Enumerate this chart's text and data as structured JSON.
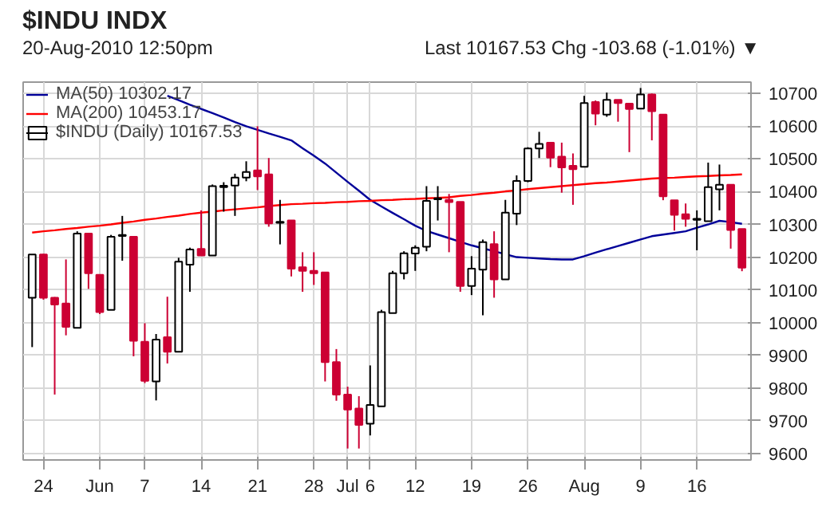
{
  "chart_data": {
    "type": "candlestick",
    "title": "$INDU INDX",
    "subtitle": "20-Aug-2010 12:50pm",
    "annotations": [
      "Last 10167.53 Chg -103.68 (-1.01%) ▼"
    ],
    "categories": [
      null,
      "24",
      null,
      null,
      null,
      null,
      "Jun",
      null,
      null,
      null,
      "7",
      null,
      null,
      null,
      null,
      "14",
      null,
      null,
      null,
      null,
      "21",
      null,
      null,
      null,
      null,
      "28",
      null,
      null,
      "Jul",
      null,
      "6",
      null,
      null,
      null,
      "12",
      null,
      null,
      null,
      null,
      "19",
      null,
      null,
      null,
      null,
      "26",
      null,
      null,
      null,
      null,
      "Aug",
      null,
      null,
      null,
      null,
      "9",
      null,
      null,
      null,
      null,
      "16",
      null,
      null,
      null,
      null
    ],
    "series": [
      {
        "name": "$INDU (Daily) 10167.53",
        "colors": [
          "#ffffff",
          "#cc0033",
          "#cc0033",
          "#cc0033",
          "#ffffff",
          "#cc0033",
          "#cc0033",
          "#ffffff",
          "#ffffff",
          "#cc0033",
          "#cc0033",
          "#ffffff",
          "#cc0033",
          "#ffffff",
          "#ffffff",
          "#cc0033",
          "#ffffff",
          "#ffffff",
          "#ffffff",
          "#ffffff",
          "#cc0033",
          "#cc0033",
          "#ffffff",
          "#cc0033",
          "#cc0033",
          "#cc0033",
          "#cc0033",
          "#cc0033",
          "#cc0033",
          "#cc0033",
          "#ffffff",
          "#ffffff",
          "#ffffff",
          "#ffffff",
          "#ffffff",
          "#ffffff",
          "#ffffff",
          "#cc0033",
          "#cc0033",
          "#ffffff",
          "#ffffff",
          "#cc0033",
          "#ffffff",
          "#ffffff",
          "#ffffff",
          "#ffffff",
          "#cc0033",
          "#cc0033",
          "#cc0033",
          "#ffffff",
          "#cc0033",
          "#ffffff",
          "#cc0033",
          "#cc0033",
          "#ffffff",
          "#cc0033",
          "#cc0033",
          "#cc0033",
          "#cc0033",
          "#ffffff",
          "#ffffff",
          "#ffffff",
          "#cc0033",
          "#cc0033"
        ],
        "ohlc": [
          [
            10076,
            10208,
            9925,
            10208
          ],
          [
            10208,
            10210,
            10070,
            10076
          ],
          [
            10076,
            10078,
            9780,
            10055
          ],
          [
            10058,
            10193,
            9961,
            9987
          ],
          [
            9984,
            10279,
            9984,
            10272
          ],
          [
            10272,
            10272,
            10103,
            10151
          ],
          [
            10146,
            10146,
            10026,
            10032
          ],
          [
            10039,
            10268,
            10039,
            10262
          ],
          [
            10265,
            10326,
            10189,
            10268
          ],
          [
            10262,
            10262,
            9897,
            9944
          ],
          [
            9941,
            9998,
            9815,
            9822
          ],
          [
            9820,
            9965,
            9762,
            9948
          ],
          [
            9955,
            10079,
            9875,
            9911
          ],
          [
            9911,
            10198,
            9911,
            10186
          ],
          [
            10177,
            10229,
            10094,
            10223
          ],
          [
            10225,
            10343,
            10205,
            10205
          ],
          [
            10205,
            10422,
            10205,
            10417
          ],
          [
            10414,
            10429,
            10339,
            10418
          ],
          [
            10419,
            10455,
            10326,
            10443
          ],
          [
            10443,
            10493,
            10432,
            10460
          ],
          [
            10465,
            10600,
            10405,
            10447
          ],
          [
            10453,
            10503,
            10293,
            10303
          ],
          [
            10305,
            10375,
            10239,
            10308
          ],
          [
            10312,
            10312,
            10141,
            10165
          ],
          [
            10169,
            10215,
            10094,
            10158
          ],
          [
            10158,
            10215,
            10115,
            10151
          ],
          [
            10153,
            10153,
            9820,
            9879
          ],
          [
            9879,
            9919,
            9761,
            9780
          ],
          [
            9780,
            9804,
            9615,
            9734
          ],
          [
            9737,
            9775,
            9615,
            9687
          ],
          [
            9691,
            9869,
            9655,
            9748
          ],
          [
            9744,
            10039,
            9744,
            10032
          ],
          [
            10029,
            10158,
            10029,
            10151
          ],
          [
            10151,
            10218,
            10132,
            10212
          ],
          [
            10211,
            10236,
            10158,
            10229
          ],
          [
            10232,
            10417,
            10218,
            10372
          ],
          [
            10377,
            10417,
            10312,
            10379
          ],
          [
            10375,
            10393,
            10215,
            10368
          ],
          [
            10369,
            10369,
            10094,
            10112
          ],
          [
            10112,
            10203,
            10084,
            10165
          ],
          [
            10162,
            10254,
            10022,
            10246
          ],
          [
            10240,
            10279,
            10076,
            10132
          ],
          [
            10132,
            10375,
            10132,
            10336
          ],
          [
            10333,
            10450,
            10298,
            10433
          ],
          [
            10433,
            10536,
            10429,
            10532
          ],
          [
            10532,
            10583,
            10503,
            10546
          ],
          [
            10550,
            10550,
            10475,
            10504
          ],
          [
            10507,
            10550,
            10397,
            10474
          ],
          [
            10479,
            10517,
            10360,
            10469
          ],
          [
            10476,
            10693,
            10476,
            10671
          ],
          [
            10674,
            10679,
            10603,
            10639
          ],
          [
            10636,
            10703,
            10629,
            10681
          ],
          [
            10681,
            10681,
            10614,
            10671
          ],
          [
            10669,
            10669,
            10521,
            10653
          ],
          [
            10654,
            10717,
            10654,
            10697
          ],
          [
            10697,
            10700,
            10557,
            10646
          ],
          [
            10636,
            10636,
            10374,
            10386
          ],
          [
            10374,
            10374,
            10281,
            10329
          ],
          [
            10331,
            10364,
            10293,
            10317
          ],
          [
            10314,
            10343,
            10221,
            10316
          ],
          [
            10310,
            10489,
            10310,
            10414
          ],
          [
            10407,
            10483,
            10343,
            10421
          ],
          [
            10421,
            10421,
            10226,
            10283
          ],
          [
            10286,
            10286,
            10157,
            10168
          ]
        ]
      },
      {
        "name": "MA(50) 10302.17",
        "type": "line",
        "color": "#000099",
        "values": [
          null,
          null,
          null,
          null,
          null,
          null,
          null,
          null,
          null,
          null,
          null,
          null,
          10693,
          10680,
          10666,
          10653,
          10640,
          10627,
          10613,
          10600,
          10589,
          10578,
          10568,
          10557,
          10533,
          10510,
          10486,
          10458,
          10430,
          10403,
          10375,
          10355,
          10335,
          10316,
          10296,
          10280,
          10269,
          10258,
          10247,
          10236,
          10227,
          10218,
          10209,
          10200,
          10198,
          10196,
          10194,
          10193,
          10193,
          10203,
          10214,
          10224,
          10234,
          10244,
          10254,
          10264,
          10269,
          10274,
          10279,
          10290,
          10300,
          10311,
          10307,
          10302
        ]
      },
      {
        "name": "MA(200) 10453.17",
        "type": "line",
        "color": "#ff0000",
        "values": [
          10275,
          10279,
          10282,
          10286,
          10289,
          10293,
          10296,
          10300,
          10305,
          10309,
          10314,
          10318,
          10323,
          10327,
          10332,
          10336,
          10339,
          10343,
          10346,
          10349,
          10352,
          10356,
          10359,
          10362,
          10363,
          10365,
          10366,
          10368,
          10369,
          10371,
          10372,
          10374,
          10375,
          10377,
          10378,
          10380,
          10381,
          10383,
          10387,
          10390,
          10394,
          10397,
          10401,
          10404,
          10408,
          10411,
          10414,
          10417,
          10420,
          10423,
          10426,
          10428,
          10431,
          10434,
          10437,
          10440,
          10442,
          10443,
          10445,
          10447,
          10448,
          10450,
          10451,
          10453
        ]
      }
    ],
    "ylim": [
      9580,
      10735
    ],
    "yticks": [
      9600,
      9700,
      9800,
      9900,
      10000,
      10100,
      10200,
      10300,
      10400,
      10500,
      10600,
      10700
    ],
    "grid": true,
    "legend": "top left"
  }
}
